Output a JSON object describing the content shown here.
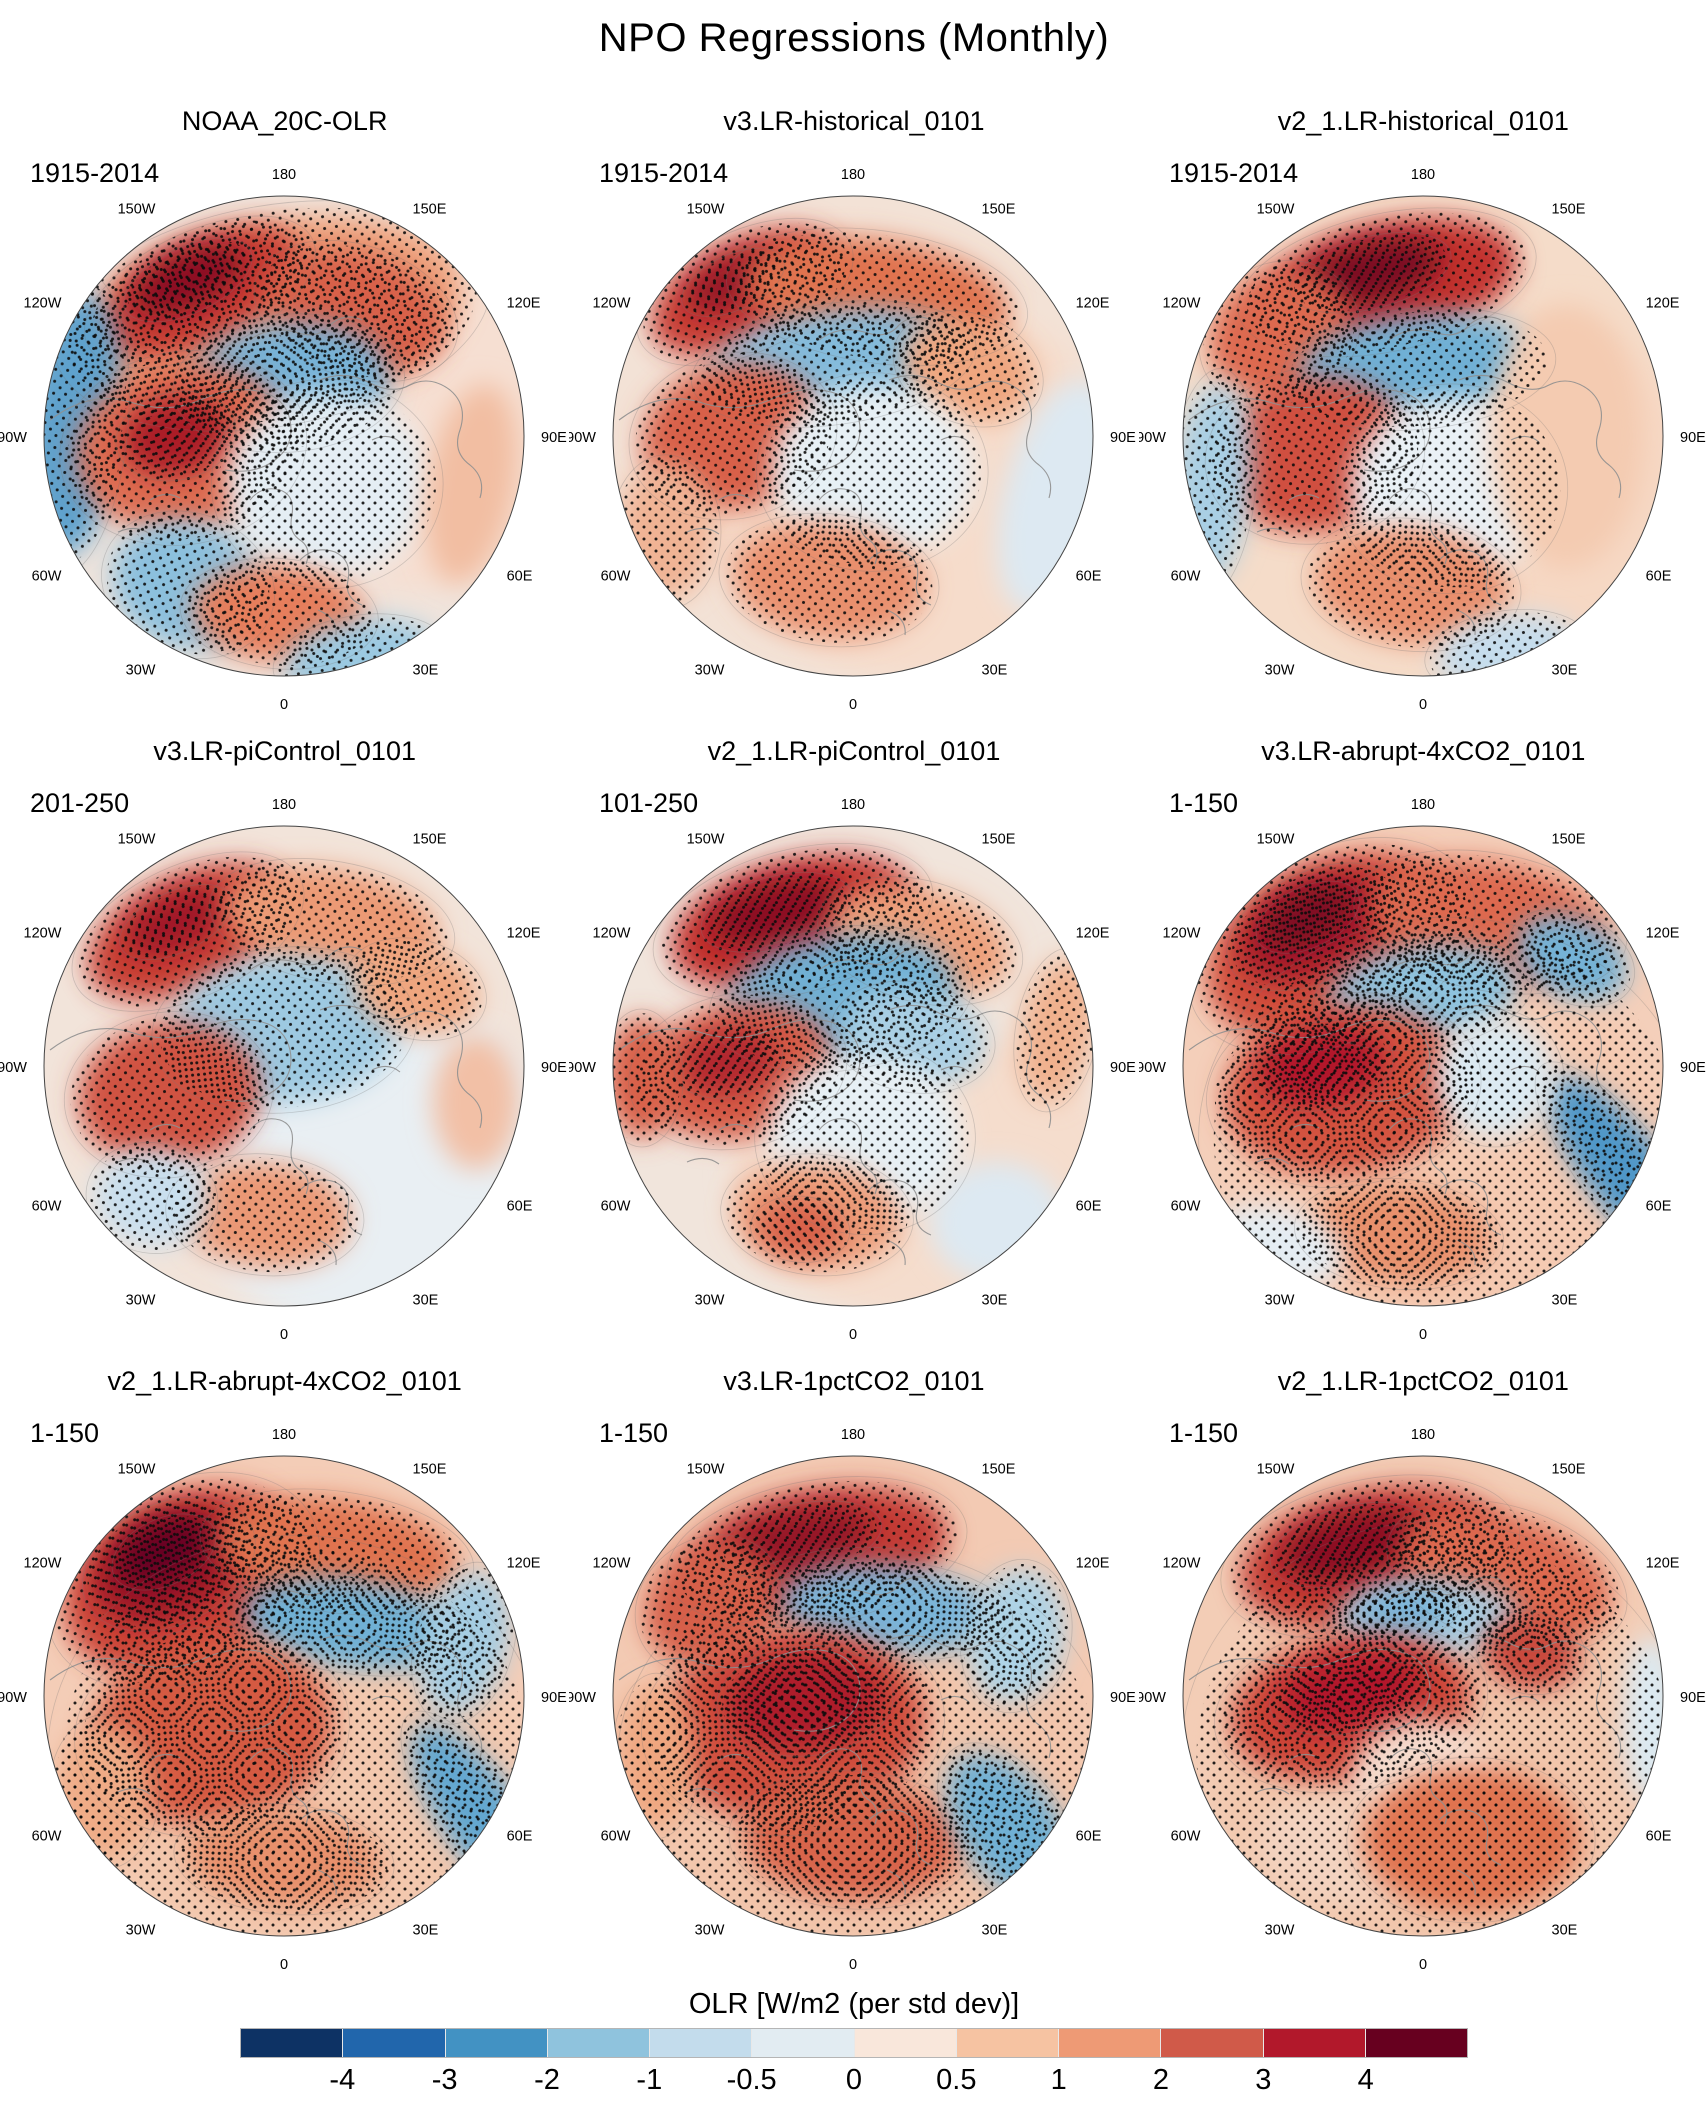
{
  "chart_data": {
    "type": "heatmap",
    "title": "NPO Regressions (Monthly)",
    "projection": "north-polar-stereographic",
    "grid": "3x3 map panels, stippling marks significant regions",
    "lon_labels": [
      "180",
      "150E",
      "120E",
      "90E",
      "60E",
      "30E",
      "0",
      "30W",
      "60W",
      "90W",
      "120W",
      "150W"
    ],
    "colorbar": {
      "label": "OLR [W/m2 (per std dev)]",
      "ticks": [
        "-4",
        "-3",
        "-2",
        "-1",
        "-0.5",
        "0",
        "0.5",
        "1",
        "2",
        "3",
        "4"
      ],
      "colors": [
        "#0d3264",
        "#2166ac",
        "#4292c3",
        "#8fc3dd",
        "#c3dcec",
        "#e2ecf2",
        "#f9e7db",
        "#f6c3a2",
        "#ee9a75",
        "#d05a49",
        "#b2182b",
        "#67001f"
      ]
    },
    "panels": [
      {
        "title": "NOAA_20C-OLR",
        "period": "1915-2014",
        "base": "#f0e4dc",
        "blobs": [
          [
            0.55,
            -0.1,
            0.6,
            0.75,
            0,
            "#f6dfd2",
            0
          ],
          [
            -0.05,
            -0.5,
            0.8,
            0.4,
            -10,
            "#eda07b",
            1
          ],
          [
            -0.35,
            -0.6,
            0.45,
            0.22,
            -25,
            "#c73d34",
            1
          ],
          [
            -0.4,
            -0.65,
            0.25,
            0.12,
            -25,
            "#8c0f24",
            1
          ],
          [
            0.3,
            -0.52,
            0.38,
            0.24,
            18,
            "#d8604a",
            1
          ],
          [
            0.02,
            -0.22,
            0.42,
            0.25,
            -5,
            "#77b2d7",
            1
          ],
          [
            -0.88,
            -0.05,
            0.2,
            0.55,
            5,
            "#5fa2cd",
            1
          ],
          [
            -0.42,
            0.05,
            0.45,
            0.35,
            -10,
            "#dd6c51",
            1
          ],
          [
            -0.45,
            0.0,
            0.22,
            0.16,
            -12,
            "#ab1f28",
            1
          ],
          [
            0.18,
            0.2,
            0.42,
            0.38,
            0,
            "#e5eef4",
            1
          ],
          [
            -0.4,
            0.62,
            0.32,
            0.26,
            20,
            "#8cc0dd",
            1
          ],
          [
            -0.02,
            0.74,
            0.36,
            0.2,
            5,
            "#e67e5c",
            1
          ],
          [
            0.32,
            0.93,
            0.32,
            0.16,
            -8,
            "#9bc9e1",
            1
          ],
          [
            0.78,
            0.2,
            0.18,
            0.42,
            10,
            "#f2bea2",
            0
          ]
        ]
      },
      {
        "title": "v3.LR-historical_0101",
        "period": "1915-2014",
        "base": "#f3e2d6",
        "blobs": [
          [
            0.25,
            0.2,
            0.85,
            0.8,
            0,
            "#f6dccb",
            0
          ],
          [
            -0.45,
            -0.6,
            0.42,
            0.22,
            -25,
            "#c73d34",
            1
          ],
          [
            -0.5,
            -0.64,
            0.2,
            0.1,
            -25,
            "#951226",
            1
          ],
          [
            0.1,
            -0.58,
            0.55,
            0.24,
            8,
            "#e0734f",
            1
          ],
          [
            -0.08,
            -0.3,
            0.52,
            0.22,
            -8,
            "#84bbdb",
            1
          ],
          [
            0.48,
            -0.28,
            0.28,
            0.2,
            20,
            "#efa67f",
            1
          ],
          [
            -0.5,
            0.0,
            0.38,
            0.3,
            -12,
            "#d8604a",
            1
          ],
          [
            0.08,
            0.15,
            0.42,
            0.36,
            0,
            "#e7f0f5",
            1
          ],
          [
            -0.1,
            0.6,
            0.4,
            0.24,
            6,
            "#e98f6d",
            1
          ],
          [
            0.85,
            0.25,
            0.22,
            0.5,
            15,
            "#dde9f2",
            0
          ],
          [
            -0.78,
            0.4,
            0.2,
            0.28,
            0,
            "#f0b394",
            1
          ]
        ]
      },
      {
        "title": "v2_1.LR-historical_0101",
        "period": "1915-2014",
        "base": "#f5dcc9",
        "blobs": [
          [
            0.35,
            0.25,
            0.8,
            0.75,
            0,
            "#f6d8c4",
            0
          ],
          [
            -0.15,
            -0.64,
            0.55,
            0.25,
            -12,
            "#c2332f",
            1
          ],
          [
            -0.22,
            -0.68,
            0.3,
            0.13,
            -14,
            "#7c0a20",
            1
          ],
          [
            -0.6,
            -0.42,
            0.3,
            0.26,
            -30,
            "#dd6950",
            1
          ],
          [
            -0.02,
            -0.28,
            0.5,
            0.22,
            -5,
            "#6fb0d5",
            1
          ],
          [
            -0.45,
            0.08,
            0.4,
            0.32,
            -10,
            "#d04f40",
            1
          ],
          [
            -0.88,
            0.2,
            0.16,
            0.42,
            5,
            "#a9cfe4",
            1
          ],
          [
            0.12,
            0.22,
            0.42,
            0.38,
            0,
            "#eaf1f6",
            1
          ],
          [
            -0.05,
            0.62,
            0.4,
            0.24,
            6,
            "#e98f6d",
            1
          ],
          [
            0.6,
            0.0,
            0.32,
            0.55,
            0,
            "#f4cbb1",
            0
          ],
          [
            0.35,
            0.9,
            0.3,
            0.15,
            -8,
            "#c6dded",
            1
          ]
        ]
      },
      {
        "title": "v3.LR-piControl_0101",
        "period": "201-250",
        "base": "#f2e4da",
        "blobs": [
          [
            0.35,
            0.4,
            0.8,
            0.7,
            0,
            "#e9eff3",
            0
          ],
          [
            -0.4,
            -0.56,
            0.45,
            0.24,
            -25,
            "#c84136",
            1
          ],
          [
            -0.45,
            -0.6,
            0.22,
            0.11,
            -25,
            "#a01528",
            1
          ],
          [
            0.2,
            -0.6,
            0.45,
            0.22,
            10,
            "#ec9a74",
            1
          ],
          [
            0.0,
            -0.15,
            0.48,
            0.3,
            -5,
            "#9dc9e1",
            1
          ],
          [
            -0.48,
            0.12,
            0.38,
            0.3,
            -8,
            "#d05342",
            1
          ],
          [
            0.55,
            -0.32,
            0.26,
            0.18,
            15,
            "#efa67f",
            1
          ],
          [
            -0.08,
            0.62,
            0.36,
            0.22,
            5,
            "#eb9874",
            1
          ],
          [
            -0.55,
            0.55,
            0.24,
            0.2,
            10,
            "#c9dfee",
            1
          ],
          [
            0.8,
            0.15,
            0.18,
            0.28,
            0,
            "#f2c0a6",
            0
          ]
        ]
      },
      {
        "title": "v2_1.LR-piControl_0101",
        "period": "101-250",
        "base": "#f1e5dc",
        "blobs": [
          [
            0.3,
            0.45,
            0.8,
            0.6,
            0,
            "#f5ddcd",
            0
          ],
          [
            -0.25,
            -0.6,
            0.52,
            0.26,
            -15,
            "#c2332f",
            1
          ],
          [
            -0.32,
            -0.64,
            0.28,
            0.13,
            -15,
            "#8c0f24",
            1
          ],
          [
            0.28,
            -0.52,
            0.38,
            0.22,
            15,
            "#eda07c",
            1
          ],
          [
            -0.05,
            -0.28,
            0.48,
            0.26,
            -8,
            "#6fb0d4",
            1
          ],
          [
            0.25,
            -0.12,
            0.3,
            0.2,
            10,
            "#a9cfe4",
            1
          ],
          [
            -0.48,
            0.02,
            0.4,
            0.28,
            -12,
            "#d65b46",
            1
          ],
          [
            -0.52,
            -0.02,
            0.2,
            0.13,
            -12,
            "#b2252e",
            1
          ],
          [
            -0.88,
            0.05,
            0.15,
            0.25,
            0,
            "#d8604a",
            1
          ],
          [
            0.05,
            0.3,
            0.4,
            0.35,
            0,
            "#e7f0f5",
            1
          ],
          [
            -0.15,
            0.62,
            0.35,
            0.22,
            5,
            "#ec9c79",
            1
          ],
          [
            -0.22,
            0.68,
            0.18,
            0.12,
            5,
            "#d8604a",
            1
          ],
          [
            0.85,
            -0.15,
            0.15,
            0.3,
            10,
            "#f0b08d",
            1
          ],
          [
            0.6,
            0.65,
            0.28,
            0.25,
            0,
            "#dde9f2",
            0
          ]
        ]
      },
      {
        "title": "v3.LR-abrupt-4xCO2_0101",
        "period": "1-150",
        "base": "#f4cfba",
        "blobs": [
          [
            0.1,
            0.3,
            0.9,
            0.8,
            0,
            "#f5cab2",
            1
          ],
          [
            -0.38,
            -0.5,
            0.55,
            0.35,
            -25,
            "#d14f3e",
            1
          ],
          [
            -0.45,
            -0.58,
            0.34,
            0.2,
            -25,
            "#a81c2b",
            1
          ],
          [
            -0.48,
            -0.62,
            0.2,
            0.11,
            -25,
            "#7f0c22",
            1
          ],
          [
            0.28,
            -0.6,
            0.5,
            0.25,
            10,
            "#dd6950",
            1
          ],
          [
            0.0,
            -0.3,
            0.4,
            0.2,
            -8,
            "#8ec3de",
            1
          ],
          [
            0.62,
            -0.45,
            0.24,
            0.16,
            25,
            "#74b2d6",
            1
          ],
          [
            -0.33,
            0.1,
            0.5,
            0.35,
            -8,
            "#d3523f",
            1
          ],
          [
            -0.42,
            0.0,
            0.26,
            0.16,
            -10,
            "#b2182b",
            1
          ],
          [
            0.85,
            0.45,
            0.16,
            0.5,
            -38,
            "#4f97c8",
            1
          ],
          [
            -0.1,
            0.7,
            0.38,
            0.2,
            5,
            "#e8906c",
            1
          ],
          [
            -0.6,
            0.75,
            0.28,
            0.16,
            15,
            "#e5edf3",
            0
          ],
          [
            0.3,
            0.05,
            0.25,
            0.25,
            0,
            "#dceaf2",
            1
          ]
        ]
      },
      {
        "title": "v2_1.LR-abrupt-4xCO2_0101",
        "period": "1-150",
        "base": "#f4cdb7",
        "blobs": [
          [
            0.05,
            0.25,
            0.9,
            0.8,
            0,
            "#f3c8ae",
            1
          ],
          [
            -0.42,
            -0.48,
            0.52,
            0.36,
            -25,
            "#cc4537",
            1
          ],
          [
            -0.48,
            -0.55,
            0.33,
            0.22,
            -25,
            "#9e1326",
            1
          ],
          [
            -0.5,
            -0.6,
            0.2,
            0.12,
            -25,
            "#670520",
            1
          ],
          [
            0.22,
            -0.6,
            0.5,
            0.22,
            8,
            "#e0734f",
            1
          ],
          [
            0.28,
            -0.3,
            0.45,
            0.18,
            8,
            "#6fb0d4",
            1
          ],
          [
            0.75,
            -0.22,
            0.18,
            0.3,
            15,
            "#a5cde3",
            1
          ],
          [
            -0.3,
            0.15,
            0.5,
            0.38,
            -8,
            "#d55a43",
            1
          ],
          [
            0.82,
            0.5,
            0.16,
            0.45,
            -35,
            "#63a7d0",
            1
          ],
          [
            0.0,
            0.68,
            0.4,
            0.2,
            5,
            "#e8906c",
            1
          ],
          [
            -0.75,
            0.4,
            0.2,
            0.28,
            0,
            "#efab86",
            1
          ]
        ]
      },
      {
        "title": "v3.LR-1pctCO2_0101",
        "period": "1-150",
        "base": "#f3cab3",
        "blobs": [
          [
            0.05,
            0.3,
            0.9,
            0.8,
            0,
            "#f2c5ab",
            1
          ],
          [
            -0.15,
            -0.6,
            0.55,
            0.26,
            -10,
            "#c33b34",
            1
          ],
          [
            -0.22,
            -0.65,
            0.3,
            0.13,
            -12,
            "#951226",
            1
          ],
          [
            -0.6,
            -0.38,
            0.28,
            0.24,
            -35,
            "#d65f48",
            1
          ],
          [
            0.15,
            -0.36,
            0.45,
            0.18,
            5,
            "#7ab4d8",
            1
          ],
          [
            0.68,
            -0.25,
            0.2,
            0.28,
            10,
            "#aed3e6",
            1
          ],
          [
            -0.25,
            0.12,
            0.55,
            0.4,
            -5,
            "#cf4e3d",
            1
          ],
          [
            -0.2,
            0.02,
            0.32,
            0.2,
            -5,
            "#ad1b2b",
            1
          ],
          [
            0.0,
            0.6,
            0.45,
            0.25,
            3,
            "#d8654c",
            1
          ],
          [
            0.65,
            0.55,
            0.2,
            0.35,
            -35,
            "#6fb0d4",
            1
          ],
          [
            -0.82,
            0.25,
            0.16,
            0.3,
            0,
            "#efa67f",
            1
          ]
        ]
      },
      {
        "title": "v2_1.LR-1pctCO2_0101",
        "period": "1-150",
        "base": "#f3cdb6",
        "blobs": [
          [
            0.05,
            0.25,
            0.92,
            0.85,
            0,
            "#f2c7ad",
            1
          ],
          [
            -0.22,
            -0.58,
            0.55,
            0.28,
            -12,
            "#c53e35",
            1
          ],
          [
            -0.3,
            -0.63,
            0.3,
            0.14,
            -14,
            "#8c0f24",
            1
          ],
          [
            0.35,
            -0.5,
            0.45,
            0.25,
            18,
            "#dd6950",
            1
          ],
          [
            0.02,
            -0.32,
            0.38,
            0.16,
            -2,
            "#a9cfe4",
            1
          ],
          [
            -0.08,
            -0.35,
            0.2,
            0.1,
            -5,
            "#7ab4d8",
            1
          ],
          [
            -0.3,
            0.05,
            0.5,
            0.3,
            -10,
            "#cc4537",
            1
          ],
          [
            -0.3,
            -0.02,
            0.3,
            0.15,
            -12,
            "#b2182b",
            1
          ],
          [
            0.45,
            -0.18,
            0.2,
            0.15,
            10,
            "#c94a3d",
            1
          ],
          [
            0.0,
            0.35,
            0.3,
            0.25,
            0,
            "#f6ded0",
            0
          ],
          [
            -0.35,
            0.65,
            0.35,
            0.22,
            10,
            "#f3d3c0",
            0
          ],
          [
            0.2,
            0.6,
            0.45,
            0.3,
            0,
            "#e0734f",
            1
          ],
          [
            0.95,
            0.1,
            0.12,
            0.35,
            0,
            "#dceaf2",
            0
          ]
        ]
      }
    ]
  }
}
